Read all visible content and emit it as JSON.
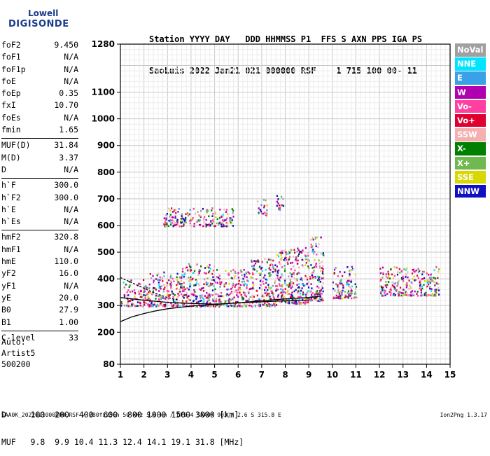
{
  "logo": {
    "line1": "Lowell",
    "line2": "DIGISONDE"
  },
  "header": {
    "line1": "Station YYYY DAY   DDD HHMMSS P1  FFS S AXN PPS IGA PS",
    "line2": "SaoLuis 2022 Jan21 021 000000 RSF    1 715 100 00- 11"
  },
  "parameters": [
    [
      {
        "label": "foF2",
        "value": "9.450"
      },
      {
        "label": "foF1",
        "value": "N/A"
      },
      {
        "label": "foF1p",
        "value": "N/A"
      },
      {
        "label": "foE",
        "value": "N/A"
      },
      {
        "label": "foEp",
        "value": "0.35"
      },
      {
        "label": "fxI",
        "value": "10.70"
      },
      {
        "label": "foEs",
        "value": "N/A"
      },
      {
        "label": "fmin",
        "value": "1.65"
      }
    ],
    [
      {
        "label": "MUF(D)",
        "value": "31.84"
      },
      {
        "label": "M(D)",
        "value": "3.37"
      },
      {
        "label": "D",
        "value": "N/A"
      }
    ],
    [
      {
        "label": "h`F",
        "value": "300.0"
      },
      {
        "label": "h`F2",
        "value": "300.0"
      },
      {
        "label": "h`E",
        "value": "N/A"
      },
      {
        "label": "h`Es",
        "value": "N/A"
      }
    ],
    [
      {
        "label": "hmF2",
        "value": "320.8"
      },
      {
        "label": "hmF1",
        "value": "N/A"
      },
      {
        "label": "hmE",
        "value": "110.0"
      },
      {
        "label": "yF2",
        "value": "16.0"
      },
      {
        "label": "yF1",
        "value": "N/A"
      },
      {
        "label": "yE",
        "value": "20.0"
      },
      {
        "label": "B0",
        "value": "27.9"
      },
      {
        "label": "B1",
        "value": "1.00"
      }
    ],
    [
      {
        "label": "C-level",
        "value": "33"
      }
    ]
  ],
  "auto": {
    "line1": "Auto:",
    "line2": "Artist5",
    "line3": "500200"
  },
  "legend": [
    {
      "label": "NoVal",
      "color": "#a0a0a0"
    },
    {
      "label": "NNE",
      "color": "#00e5ff"
    },
    {
      "label": "E",
      "color": "#3aa0e8"
    },
    {
      "label": "W",
      "color": "#b000b0"
    },
    {
      "label": "Vo-",
      "color": "#ff40a0"
    },
    {
      "label": "Vo+",
      "color": "#e00030"
    },
    {
      "label": "SSW",
      "color": "#f4b0b0"
    },
    {
      "label": "X-",
      "color": "#008000"
    },
    {
      "label": "X+",
      "color": "#70b850"
    },
    {
      "label": "SSE",
      "color": "#d8d800"
    },
    {
      "label": "NNW",
      "color": "#1010c0"
    }
  ],
  "footer": {
    "line1": "D     100  200  400  600  800 1000 1500 3000 [km]",
    "line2": "MUF   9.8  9.9 10.4 11.3 12.4 14.1 19.1 31.8 [MHz]"
  },
  "footnote": "SAA0K_2022021000000.RSF / 280fx256h 50 kHz 5.0 km / DPS-4 SAA0K 903 / 2.6 S 315.8 E",
  "version": "Ion2Png 1.3.17",
  "chart_data": {
    "type": "scatter",
    "xlim": [
      1,
      15
    ],
    "ylim": [
      80,
      1280
    ],
    "xticks": [
      1,
      2,
      3,
      4,
      5,
      6,
      7,
      8,
      9,
      10,
      11,
      12,
      13,
      14,
      15
    ],
    "yticks": [
      80,
      200,
      300,
      400,
      500,
      600,
      700,
      800,
      900,
      1000,
      1100,
      1280
    ],
    "grid": true,
    "traces": [
      {
        "name": "F-trace-lower",
        "x": [
          1.0,
          1.5,
          2.0,
          3.0,
          4.0,
          5.0,
          6.0,
          7.0,
          8.0,
          9.0,
          9.5
        ],
        "y": [
          330,
          325,
          320,
          312,
          308,
          305,
          310,
          318,
          325,
          330,
          335
        ]
      },
      {
        "name": "O-trace-profile",
        "x": [
          1.0,
          1.5,
          2.0,
          2.5,
          3.0,
          4.0,
          5.0,
          6.0,
          7.0,
          8.0,
          9.0
        ],
        "y": [
          240,
          258,
          270,
          280,
          288,
          298,
          304,
          310,
          314,
          318,
          320
        ]
      },
      {
        "name": "dashed-profile",
        "x": [
          1.0,
          1.5,
          2.0,
          2.5,
          3.0,
          3.5
        ],
        "y": [
          405,
          385,
          365,
          345,
          330,
          320
        ]
      }
    ],
    "scatter_regions": [
      {
        "x": [
          1.0,
          2.2
        ],
        "y": [
          300,
          400
        ]
      },
      {
        "x": [
          2.2,
          3.5
        ],
        "y": [
          300,
          430
        ]
      },
      {
        "x": [
          3.5,
          5.0
        ],
        "y": [
          300,
          460
        ]
      },
      {
        "x": [
          5.0,
          6.5
        ],
        "y": [
          300,
          440
        ]
      },
      {
        "x": [
          6.5,
          7.6
        ],
        "y": [
          300,
          480
        ]
      },
      {
        "x": [
          7.6,
          9.0
        ],
        "y": [
          310,
          520
        ]
      },
      {
        "x": [
          9.0,
          9.6
        ],
        "y": [
          320,
          560
        ]
      },
      {
        "x": [
          10.0,
          11.0
        ],
        "y": [
          330,
          450
        ]
      },
      {
        "x": [
          12.0,
          14.5
        ],
        "y": [
          340,
          450
        ]
      },
      {
        "x": [
          2.8,
          5.8
        ],
        "y": [
          600,
          670
        ]
      },
      {
        "x": [
          6.8,
          7.2
        ],
        "y": [
          640,
          700
        ]
      },
      {
        "x": [
          7.6,
          7.9
        ],
        "y": [
          660,
          720
        ]
      }
    ]
  }
}
